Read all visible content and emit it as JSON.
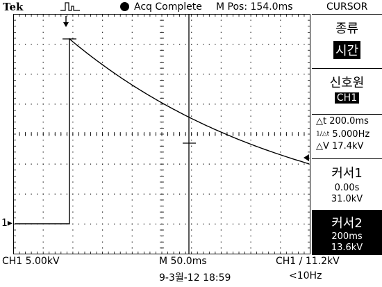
{
  "header": {
    "brand": "Tek",
    "trigger_icon": "trigger-pulse-icon",
    "status": "Acq Complete",
    "mpos": "M Pos: 154.0ms",
    "menu_title": "CURSOR"
  },
  "menu": {
    "type_label": "종류",
    "type_value": "시간",
    "source_label": "신호원",
    "source_value": "CH1",
    "delta_t": "△t 200.0ms",
    "inv_delta_t": "5.000Hz",
    "delta_v": "△V 17.4kV",
    "cursor1_label": "커서1",
    "cursor1_time": "0.00s",
    "cursor1_value": "31.0kV",
    "cursor2_label": "커서2",
    "cursor2_time": "200ms",
    "cursor2_value": "13.6kV"
  },
  "footer": {
    "ch1_scale": "CH1  5.00kV",
    "timebase": "M 50.0ms",
    "trigger": "CH1 ∕ 11.2kV",
    "date": "9-3월-12 18:59",
    "freq": "<10Hz"
  },
  "marker": {
    "ch1": "1▸"
  },
  "colors": {
    "trace": "#000000",
    "grid": "#000000",
    "background": "#ffffff"
  }
}
